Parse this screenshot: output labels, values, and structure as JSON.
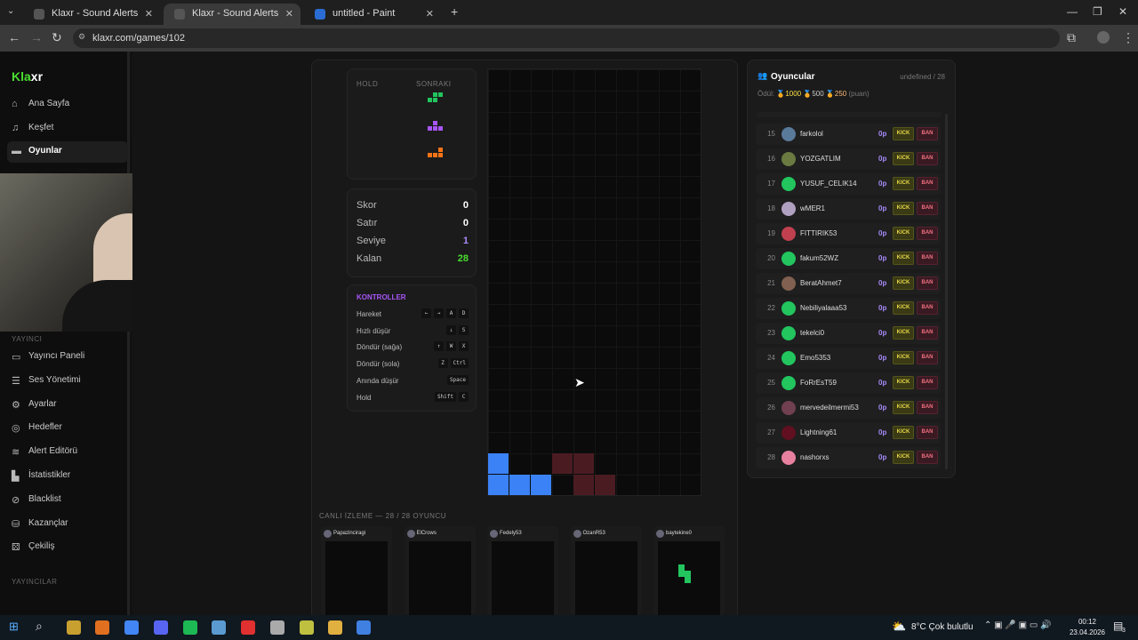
{
  "browser": {
    "tabs": [
      {
        "title": "Klaxr - Sound Alerts",
        "active": false
      },
      {
        "title": "Klaxr - Sound Alerts",
        "active": true
      },
      {
        "title": "untitled - Paint",
        "active": false
      }
    ],
    "url": "klaxr.com/games/102"
  },
  "sidebar": {
    "logo": "Klaxr",
    "items": [
      {
        "label": "Ana Sayfa",
        "icon": "home-icon"
      },
      {
        "label": "Keşfet",
        "icon": "music-icon"
      },
      {
        "label": "Oyunlar",
        "icon": "gamepad-icon",
        "active": true
      }
    ],
    "section1": "YAYINCI",
    "items2": [
      {
        "label": "Yayıncı Paneli",
        "icon": "monitor-icon"
      },
      {
        "label": "Ses Yönetimi",
        "icon": "list-icon"
      },
      {
        "label": "Ayarlar",
        "icon": "gear-icon"
      },
      {
        "label": "Hedefler",
        "icon": "target-icon"
      },
      {
        "label": "Alert Editörü",
        "icon": "layers-icon"
      },
      {
        "label": "İstatistikler",
        "icon": "chart-icon"
      },
      {
        "label": "Blacklist",
        "icon": "ban-icon"
      },
      {
        "label": "Kazançlar",
        "icon": "coins-icon"
      },
      {
        "label": "Çekiliş",
        "icon": "dice-icon"
      }
    ],
    "section2": "YAYINCILAR"
  },
  "game": {
    "hold_label": "HOLD",
    "next_label": "SONRAKI",
    "next_colors": [
      "#22c55e",
      "#a855f7",
      "#f97316"
    ],
    "stats": [
      {
        "label": "Skor",
        "value": "0",
        "color": "#ffffff"
      },
      {
        "label": "Satır",
        "value": "0",
        "color": "#ffffff"
      },
      {
        "label": "Seviye",
        "value": "1",
        "color": "#a78bfa"
      },
      {
        "label": "Kalan",
        "value": "28",
        "color": "#4ade30"
      }
    ],
    "controls_title": "KONTROLLER",
    "controls": [
      {
        "label": "Hareket",
        "keys": [
          "←",
          "→",
          "A",
          "D"
        ]
      },
      {
        "label": "Hızlı düşür",
        "keys": [
          "↓",
          "S"
        ]
      },
      {
        "label": "Döndür (sağa)",
        "keys": [
          "↑",
          "W",
          "X"
        ]
      },
      {
        "label": "Döndür (sola)",
        "keys": [
          "Z",
          "Ctrl"
        ]
      },
      {
        "label": "Anında düşür",
        "keys": [
          "Space"
        ]
      },
      {
        "label": "Hold",
        "keys": [
          "Shift",
          "C"
        ]
      }
    ],
    "board": {
      "cols": 10,
      "rows": 20,
      "cells": [
        {
          "c": 0,
          "r": 18,
          "color": "#3b82f6"
        },
        {
          "c": 0,
          "r": 19,
          "color": "#3b82f6"
        },
        {
          "c": 1,
          "r": 19,
          "color": "#3b82f6"
        },
        {
          "c": 2,
          "r": 19,
          "color": "#3b82f6"
        },
        {
          "c": 3,
          "r": 18,
          "color": "#4a1c22"
        },
        {
          "c": 4,
          "r": 18,
          "color": "#4a1c22"
        },
        {
          "c": 4,
          "r": 19,
          "color": "#4a1c22"
        },
        {
          "c": 5,
          "r": 19,
          "color": "#4a1c22"
        }
      ]
    },
    "live_title": "CANLI İZLEME — 28 / 28 OYUNCU",
    "live": [
      {
        "name": "Papazinciragi"
      },
      {
        "name": "ElCrows"
      },
      {
        "name": "Fedely53"
      },
      {
        "name": "OzanR53"
      },
      {
        "name": "baytekine0"
      }
    ]
  },
  "players": {
    "title": "Oyuncular",
    "count": "undefined / 28",
    "reward_label": "Ödül:",
    "rewards": [
      "1000",
      "500",
      "250"
    ],
    "reward_unit": "(puan)",
    "kick": "KICK",
    "ban": "BAN",
    "list": [
      {
        "n": "15",
        "name": "farkolol",
        "pts": "0p"
      },
      {
        "n": "16",
        "name": "YOZGATLIM",
        "pts": "0p"
      },
      {
        "n": "17",
        "name": "YUSUF_CELIK14",
        "pts": "0p"
      },
      {
        "n": "18",
        "name": "wMER1",
        "pts": "0p"
      },
      {
        "n": "19",
        "name": "FITTIRIK53",
        "pts": "0p"
      },
      {
        "n": "20",
        "name": "fakum52WZ",
        "pts": "0p"
      },
      {
        "n": "21",
        "name": "BeratAhmet7",
        "pts": "0p"
      },
      {
        "n": "22",
        "name": "Nebiliyalaaa53",
        "pts": "0p"
      },
      {
        "n": "23",
        "name": "tekelci0",
        "pts": "0p"
      },
      {
        "n": "24",
        "name": "Emo5353",
        "pts": "0p"
      },
      {
        "n": "25",
        "name": "FoRrEsT59",
        "pts": "0p"
      },
      {
        "n": "26",
        "name": "mervedeilmermi53",
        "pts": "0p"
      },
      {
        "n": "27",
        "name": "Lightning61",
        "pts": "0p"
      },
      {
        "n": "28",
        "name": "nashorxs",
        "pts": "0p"
      }
    ]
  },
  "taskbar": {
    "weather": "8°C  Çok bulutlu",
    "time": "00:12",
    "date": "23.04.2026",
    "notif": "3"
  }
}
